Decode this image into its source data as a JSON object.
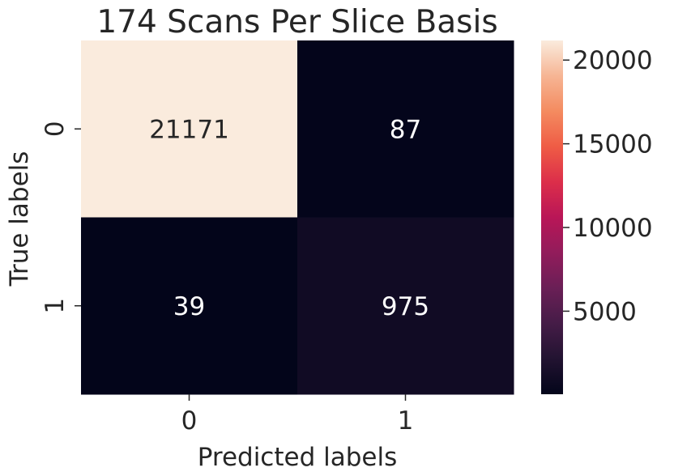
{
  "chart_data": {
    "type": "heatmap",
    "title": "174 Scans Per Slice Basis",
    "xlabel": "Predicted labels",
    "ylabel": "True labels",
    "x_categories": [
      "0",
      "1"
    ],
    "y_categories": [
      "0",
      "1"
    ],
    "matrix": [
      [
        21171,
        87
      ],
      [
        39,
        975
      ]
    ],
    "colormap": "rocket",
    "colorbar": {
      "vmin": 39,
      "vmax": 21171,
      "ticks": [
        5000,
        10000,
        15000,
        20000
      ],
      "tick_labels": [
        "5000",
        "10000",
        "15000",
        "20000"
      ]
    },
    "cell_text_colors": {
      "on_light": "#262626",
      "on_dark": "#ffffff"
    }
  }
}
